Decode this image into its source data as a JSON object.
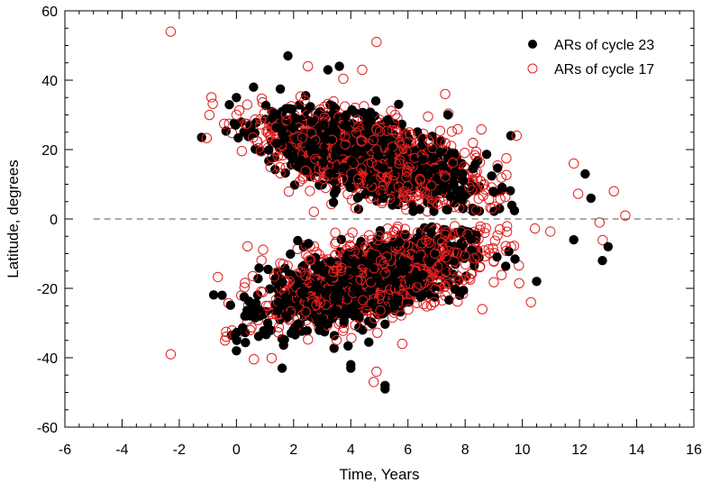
{
  "chart_data": {
    "type": "scatter",
    "title": "",
    "xlabel": "Time, Years",
    "ylabel": "Latitude, degrees",
    "xlim": [
      -6,
      16
    ],
    "ylim": [
      -60,
      60
    ],
    "x_ticks": [
      -6,
      -4,
      -2,
      0,
      2,
      4,
      6,
      8,
      10,
      12,
      14,
      16
    ],
    "y_ticks": [
      -60,
      -40,
      -20,
      0,
      20,
      40,
      60
    ],
    "grid": false,
    "equator_line": {
      "y": 0,
      "style": "dashed",
      "x_range": [
        -5,
        15.5
      ]
    },
    "legend_position": "top-right",
    "series": [
      {
        "name": "ARs of cycle 23",
        "marker": "filled-circle",
        "color": "#000000",
        "sample_points": [
          {
            "x": 1.8,
            "y": 47
          },
          {
            "x": 0.0,
            "y": 35
          },
          {
            "x": 0.6,
            "y": 38
          },
          {
            "x": 3.2,
            "y": 43
          },
          {
            "x": 3.6,
            "y": 44
          },
          {
            "x": -0.5,
            "y": -22
          },
          {
            "x": 0.0,
            "y": -38
          },
          {
            "x": 5.2,
            "y": -48
          },
          {
            "x": 5.2,
            "y": -49
          },
          {
            "x": 4.0,
            "y": -43
          },
          {
            "x": 4.0,
            "y": -42
          },
          {
            "x": 1.6,
            "y": -43
          },
          {
            "x": 12.2,
            "y": 13
          },
          {
            "x": 12.4,
            "y": 6
          },
          {
            "x": 13.0,
            "y": -8
          },
          {
            "x": 12.8,
            "y": -12
          },
          {
            "x": 9.6,
            "y": 24
          },
          {
            "x": 7.4,
            "y": 30
          },
          {
            "x": 11.8,
            "y": -6
          },
          {
            "x": 10.5,
            "y": -18
          }
        ],
        "clusters": [
          {
            "x_center": 4.5,
            "x_spread": 3.2,
            "y_center": 18,
            "y_spread": 7,
            "drift": -2.0
          },
          {
            "x_center": 4.5,
            "x_spread": 3.2,
            "y_center": -18,
            "y_spread": 7,
            "drift": 2.0
          }
        ]
      },
      {
        "name": "ARs of cycle 17",
        "marker": "open-circle",
        "color": "#e02020",
        "sample_points": [
          {
            "x": -2.3,
            "y": 54
          },
          {
            "x": 4.9,
            "y": 51
          },
          {
            "x": 4.4,
            "y": 43
          },
          {
            "x": 2.5,
            "y": 44
          },
          {
            "x": -2.3,
            "y": -39
          },
          {
            "x": 4.8,
            "y": -47
          },
          {
            "x": 4.9,
            "y": -44
          },
          {
            "x": 13.6,
            "y": 1
          },
          {
            "x": 13.2,
            "y": 8
          },
          {
            "x": 10.3,
            "y": -24
          },
          {
            "x": 8.6,
            "y": -26
          },
          {
            "x": 0.0,
            "y": 30
          },
          {
            "x": -0.4,
            "y": -35
          },
          {
            "x": 11.8,
            "y": 16
          },
          {
            "x": 7.3,
            "y": 36
          },
          {
            "x": 9.8,
            "y": 24
          },
          {
            "x": 12.7,
            "y": -1
          },
          {
            "x": 5.8,
            "y": -36
          }
        ],
        "clusters": [
          {
            "x_center": 4.8,
            "x_spread": 3.4,
            "y_center": 17,
            "y_spread": 7.5,
            "drift": -2.0
          },
          {
            "x_center": 4.8,
            "x_spread": 3.4,
            "y_center": -17,
            "y_spread": 7.5,
            "drift": 2.0
          }
        ]
      }
    ]
  }
}
